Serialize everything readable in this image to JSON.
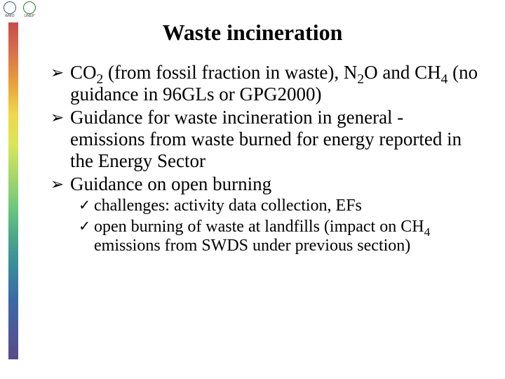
{
  "logos": {
    "left_label": "WMO",
    "right_label": "UNEP"
  },
  "gradient": {
    "stops": [
      "#c94a4a",
      "#d8734a",
      "#e6a23c",
      "#f0d84a",
      "#d8e65a",
      "#a8d86a",
      "#6ec97a",
      "#4aa88a",
      "#3a8a9a",
      "#3a6aa8",
      "#4a5a9a",
      "#5a4a8a"
    ]
  },
  "title": {
    "text": "Waste incineration",
    "fontsize": 32
  },
  "bullets": {
    "arrow_glyph": "➢",
    "check_glyph": "✓",
    "main_fontsize": 27,
    "sub_fontsize": 24,
    "items": [
      {
        "segments": [
          {
            "t": "CO"
          },
          {
            "t": "2",
            "sub": true
          },
          {
            "t": " "
          },
          {
            "t": "(from fossil fraction in waste), N"
          },
          {
            "t": "2",
            "sub": true
          },
          {
            "t": "O and CH"
          },
          {
            "t": "4",
            "sub": true
          },
          {
            "t": " "
          },
          {
            "t": "(no guidance in 96GLs or GPG2000)"
          }
        ]
      },
      {
        "segments": [
          {
            "t": "Guidance for waste incineration in general - emissions from waste burned for energy reported in the Energy Sector"
          }
        ]
      },
      {
        "segments": [
          {
            "t": "Guidance on open burning"
          }
        ],
        "subs": [
          {
            "segments": [
              {
                "t": "challenges: activity data collection, EFs"
              }
            ]
          },
          {
            "segments": [
              {
                "t": "open burning of waste at landfills (impact on CH"
              },
              {
                "t": "4",
                "sub": true
              },
              {
                "t": " emissions from SWDS under previous section)"
              }
            ]
          }
        ]
      }
    ]
  }
}
